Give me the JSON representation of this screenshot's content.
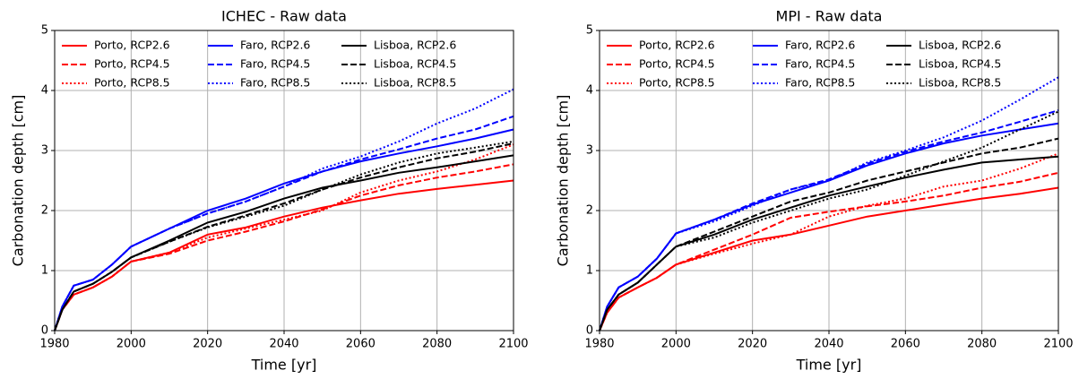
{
  "chart_data": [
    {
      "type": "line",
      "title": "ICHEC - Raw data",
      "xlabel": "Time [yr]",
      "ylabel": "Carbonation depth [cm]",
      "x": [
        1980,
        1982,
        1985,
        1990,
        1995,
        2000,
        2010,
        2020,
        2030,
        2040,
        2050,
        2060,
        2070,
        2080,
        2090,
        2100
      ],
      "xlim": [
        1980,
        2100
      ],
      "xticks": [
        1980,
        2000,
        2020,
        2040,
        2060,
        2080,
        2100
      ],
      "ylim": [
        0,
        5
      ],
      "yticks": [
        0,
        1,
        2,
        3,
        4,
        5
      ],
      "grid": true,
      "legend": "upper left",
      "series": [
        {
          "name": "Porto, RCP2.6",
          "color": "#ff0000",
          "style": "solid",
          "values": [
            0,
            0.35,
            0.6,
            0.72,
            0.9,
            1.15,
            1.3,
            1.6,
            1.72,
            1.9,
            2.05,
            2.17,
            2.28,
            2.36,
            2.43,
            2.5
          ]
        },
        {
          "name": "Porto, RCP4.5",
          "color": "#ff0000",
          "style": "dashed",
          "values": [
            0,
            0.35,
            0.6,
            0.72,
            0.9,
            1.15,
            1.28,
            1.5,
            1.65,
            1.82,
            2.02,
            2.25,
            2.42,
            2.55,
            2.65,
            2.77
          ]
        },
        {
          "name": "Porto, RCP8.5",
          "color": "#ff0000",
          "style": "dotted",
          "values": [
            0,
            0.35,
            0.6,
            0.72,
            0.9,
            1.15,
            1.3,
            1.55,
            1.7,
            1.85,
            2.0,
            2.3,
            2.5,
            2.65,
            2.85,
            3.1
          ]
        },
        {
          "name": "Faro, RCP2.6",
          "color": "#0000ff",
          "style": "solid",
          "values": [
            0,
            0.4,
            0.75,
            0.85,
            1.1,
            1.4,
            1.7,
            2.0,
            2.2,
            2.45,
            2.65,
            2.82,
            2.95,
            3.07,
            3.2,
            3.35
          ]
        },
        {
          "name": "Faro, RCP4.5",
          "color": "#0000ff",
          "style": "dashed",
          "values": [
            0,
            0.4,
            0.75,
            0.85,
            1.1,
            1.4,
            1.7,
            1.95,
            2.15,
            2.4,
            2.65,
            2.85,
            3.02,
            3.2,
            3.35,
            3.57
          ]
        },
        {
          "name": "Faro, RCP8.5",
          "color": "#0000ff",
          "style": "dotted",
          "values": [
            0,
            0.4,
            0.75,
            0.85,
            1.1,
            1.4,
            1.7,
            1.95,
            2.15,
            2.4,
            2.7,
            2.9,
            3.15,
            3.45,
            3.7,
            4.02
          ]
        },
        {
          "name": "Lisboa, RCP2.6",
          "color": "#000000",
          "style": "solid",
          "values": [
            0,
            0.35,
            0.65,
            0.78,
            0.98,
            1.22,
            1.5,
            1.8,
            1.98,
            2.2,
            2.38,
            2.5,
            2.63,
            2.72,
            2.82,
            2.92
          ]
        },
        {
          "name": "Lisboa, RCP4.5",
          "color": "#000000",
          "style": "dashed",
          "values": [
            0,
            0.35,
            0.65,
            0.78,
            0.98,
            1.22,
            1.48,
            1.73,
            1.92,
            2.12,
            2.35,
            2.55,
            2.72,
            2.87,
            2.98,
            3.12
          ]
        },
        {
          "name": "Lisboa, RCP8.5",
          "color": "#000000",
          "style": "dotted",
          "values": [
            0,
            0.35,
            0.65,
            0.78,
            0.98,
            1.22,
            1.48,
            1.72,
            1.9,
            2.08,
            2.35,
            2.6,
            2.8,
            2.95,
            3.05,
            3.15
          ]
        }
      ]
    },
    {
      "type": "line",
      "title": "MPI - Raw data",
      "xlabel": "Time [yr]",
      "ylabel": "Carbonation depth [cm]",
      "x": [
        1980,
        1982,
        1985,
        1990,
        1995,
        2000,
        2010,
        2020,
        2030,
        2040,
        2050,
        2060,
        2070,
        2080,
        2090,
        2100
      ],
      "xlim": [
        1980,
        2100
      ],
      "xticks": [
        1980,
        2000,
        2020,
        2040,
        2060,
        2080,
        2100
      ],
      "ylim": [
        0,
        5
      ],
      "yticks": [
        0,
        1,
        2,
        3,
        4,
        5
      ],
      "grid": true,
      "legend": "upper left",
      "series": [
        {
          "name": "Porto, RCP2.6",
          "color": "#ff0000",
          "style": "solid",
          "values": [
            0,
            0.3,
            0.55,
            0.72,
            0.88,
            1.1,
            1.3,
            1.5,
            1.6,
            1.75,
            1.9,
            2.0,
            2.1,
            2.2,
            2.28,
            2.38
          ]
        },
        {
          "name": "Porto, RCP4.5",
          "color": "#ff0000",
          "style": "dashed",
          "values": [
            0,
            0.3,
            0.55,
            0.72,
            0.88,
            1.1,
            1.35,
            1.6,
            1.88,
            1.98,
            2.07,
            2.15,
            2.25,
            2.38,
            2.48,
            2.63
          ]
        },
        {
          "name": "Porto, RCP8.5",
          "color": "#ff0000",
          "style": "dotted",
          "values": [
            0,
            0.3,
            0.55,
            0.72,
            0.88,
            1.1,
            1.28,
            1.45,
            1.6,
            1.9,
            2.08,
            2.2,
            2.4,
            2.5,
            2.7,
            2.95
          ]
        },
        {
          "name": "Faro, RCP2.6",
          "color": "#0000ff",
          "style": "solid",
          "values": [
            0,
            0.4,
            0.72,
            0.9,
            1.2,
            1.62,
            1.85,
            2.1,
            2.3,
            2.5,
            2.75,
            2.95,
            3.12,
            3.25,
            3.35,
            3.45
          ]
        },
        {
          "name": "Faro, RCP4.5",
          "color": "#0000ff",
          "style": "dashed",
          "values": [
            0,
            0.4,
            0.72,
            0.9,
            1.2,
            1.62,
            1.85,
            2.12,
            2.35,
            2.52,
            2.78,
            2.98,
            3.15,
            3.3,
            3.48,
            3.67
          ]
        },
        {
          "name": "Faro, RCP8.5",
          "color": "#0000ff",
          "style": "dotted",
          "values": [
            0,
            0.4,
            0.72,
            0.9,
            1.2,
            1.62,
            1.82,
            2.08,
            2.35,
            2.5,
            2.8,
            3.0,
            3.22,
            3.5,
            3.85,
            4.22
          ]
        },
        {
          "name": "Lisboa, RCP2.6",
          "color": "#000000",
          "style": "solid",
          "values": [
            0,
            0.35,
            0.6,
            0.8,
            1.1,
            1.4,
            1.6,
            1.85,
            2.05,
            2.25,
            2.4,
            2.55,
            2.68,
            2.8,
            2.85,
            2.9
          ]
        },
        {
          "name": "Lisboa, RCP4.5",
          "color": "#000000",
          "style": "dashed",
          "values": [
            0,
            0.35,
            0.6,
            0.8,
            1.1,
            1.4,
            1.65,
            1.9,
            2.15,
            2.3,
            2.5,
            2.65,
            2.8,
            2.95,
            3.05,
            3.2
          ]
        },
        {
          "name": "Lisboa, RCP8.5",
          "color": "#000000",
          "style": "dotted",
          "values": [
            0,
            0.35,
            0.6,
            0.8,
            1.1,
            1.4,
            1.55,
            1.8,
            2.0,
            2.2,
            2.35,
            2.58,
            2.82,
            3.05,
            3.35,
            3.65
          ]
        }
      ]
    }
  ]
}
